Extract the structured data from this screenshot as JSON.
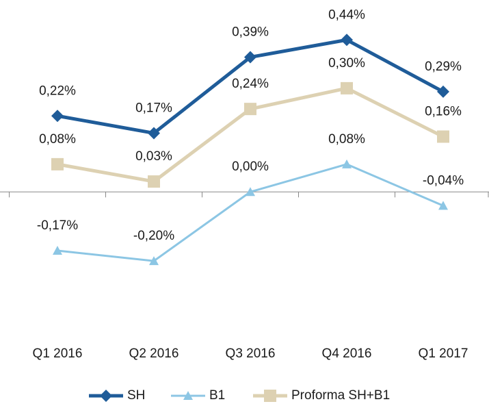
{
  "chart_data": {
    "type": "line",
    "categories": [
      "Q1 2016",
      "Q2 2016",
      "Q3 2016",
      "Q4 2016",
      "Q1 2017"
    ],
    "series": [
      {
        "name": "SH",
        "color": "#1f5c99",
        "marker": "diamond",
        "values": [
          0.22,
          0.17,
          0.39,
          0.44,
          0.29
        ],
        "value_labels": [
          "0,22%",
          "0,17%",
          "0,39%",
          "0,44%",
          "0,29%"
        ]
      },
      {
        "name": "B1",
        "color": "#8cc6e4",
        "marker": "triangle",
        "values": [
          -0.17,
          -0.2,
          0.0,
          0.08,
          -0.04
        ],
        "value_labels": [
          "-0,17%",
          "-0,20%",
          "0,00%",
          "0,08%",
          "-0,04%"
        ]
      },
      {
        "name": "Proforma SH+B1",
        "color": "#ddd1b2",
        "marker": "square",
        "values": [
          0.08,
          0.03,
          0.24,
          0.3,
          0.16
        ],
        "value_labels": [
          "0,08%",
          "0,03%",
          "0,24%",
          "0,30%",
          "0,16%"
        ]
      }
    ],
    "ylim": [
      -0.4,
      0.5
    ],
    "legend": "bottom"
  }
}
